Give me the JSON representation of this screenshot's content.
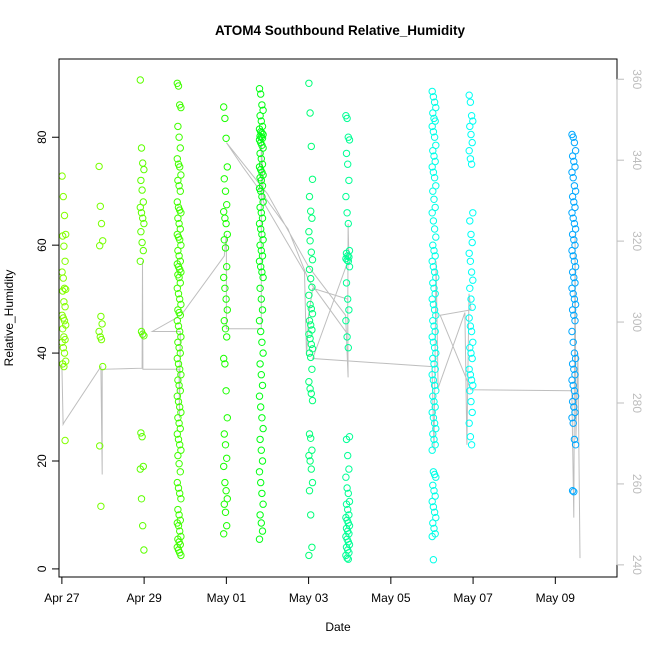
{
  "chart_data": {
    "type": "scatter",
    "title": "ATOM4 Southbound Relative_Humidity",
    "xlabel": "Date",
    "ylabel": "Relative_Humidity",
    "x_unit": "days since Apr 27 00:00",
    "xlim": [
      -0.07,
      13.5
    ],
    "ylim": [
      -1.5,
      94.5
    ],
    "x_ticks": [
      {
        "value": 0,
        "label": "Apr 27"
      },
      {
        "value": 2,
        "label": "Apr 29"
      },
      {
        "value": 4,
        "label": "May 01"
      },
      {
        "value": 6,
        "label": "May 03"
      },
      {
        "value": 8,
        "label": "May 05"
      },
      {
        "value": 10,
        "label": "May 07"
      },
      {
        "value": 12,
        "label": "May 09"
      }
    ],
    "y_ticks": [
      0,
      20,
      40,
      60,
      80
    ],
    "y2_ticks": [
      240,
      260,
      280,
      300,
      320,
      340,
      360
    ],
    "y2lim": [
      237,
      365
    ],
    "colors": {
      "axis": "#000000",
      "right_axis": "#bdbdbd",
      "path_line": "#bebebe",
      "frame": "#000000"
    },
    "clusters": [
      {
        "x": 0.05,
        "color": "#84ff00",
        "values": [
          72.8,
          69.0,
          65.5,
          62.0,
          61.7,
          59.8,
          57.0,
          55.0,
          53.9,
          52.0,
          51.8,
          51.5,
          49.5,
          48.6,
          47.0,
          46.5,
          46.0,
          45.2,
          44.5,
          43.0,
          42.5,
          42.0,
          41.0,
          40.0,
          38.5,
          38.0,
          37.5,
          23.8
        ]
      },
      {
        "x": 0.95,
        "color": "#77ff00",
        "values": [
          74.6,
          67.2,
          64.0,
          60.8,
          59.9,
          46.8,
          45.4,
          44.0,
          43.0,
          42.5,
          37.5,
          22.8,
          11.6
        ]
      },
      {
        "x": 1.95,
        "color": "#5dff00",
        "values": [
          90.6,
          78.0,
          75.2,
          74.0,
          72.0,
          70.2,
          68.0,
          67.0,
          66.0,
          65.0,
          64.0,
          62.5,
          60.5,
          59.0,
          57.0,
          44.0,
          43.5,
          43.2,
          25.2,
          24.5,
          19.0,
          18.5,
          13.0,
          8.0,
          3.5
        ]
      },
      {
        "x": 2.85,
        "color": "#40ff00",
        "values": [
          90.0,
          89.5,
          86.0,
          85.5,
          82.0,
          80.0,
          78.0,
          76.0,
          75.0,
          74.5,
          73.0,
          72.0,
          71.0,
          70.0,
          68.0,
          67.0,
          66.5,
          66.0,
          65.0,
          64.0,
          63.0,
          62.0,
          61.5,
          61.0,
          60.0,
          59.0,
          58.0,
          57.0,
          56.5,
          56.0,
          55.5,
          55.0,
          54.5,
          54.0,
          53.0,
          52.0,
          51.0,
          50.0,
          49.0,
          48.0,
          47.5,
          47.0,
          46.0,
          45.0,
          44.0,
          43.0,
          42.0,
          41.0,
          40.0,
          39.0,
          38.0,
          37.0,
          36.0,
          35.0,
          34.0,
          33.0,
          32.0,
          31.0,
          30.0,
          29.0,
          28.0,
          27.0,
          26.0,
          25.0,
          24.0,
          23.0,
          22.0,
          21.0,
          19.5,
          18.0,
          16.0,
          15.0,
          14.0,
          13.0,
          11.0,
          10.0,
          9.0,
          8.5,
          8.0,
          7.0,
          6.0,
          5.5,
          5.0,
          4.5,
          4.0,
          3.5,
          3.0,
          2.5
        ]
      },
      {
        "x": 3.98,
        "color": "#1bff00",
        "values": [
          85.6,
          83.5,
          79.8,
          74.5,
          72.3,
          70.0,
          67.5,
          66.2,
          65.0,
          64.0,
          62.0,
          61.0,
          59.5,
          56.0,
          54.0,
          52.0,
          50.0,
          48.0,
          46.0,
          44.5,
          43.0,
          39.0,
          38.0,
          33.0,
          28.0,
          25.0,
          23.0,
          20.5,
          19.0,
          16.0,
          14.5,
          13.0,
          12.0,
          10.5,
          8.0,
          6.5
        ]
      },
      {
        "x": 4.85,
        "color": "#00ff12",
        "values": [
          89.0,
          88.0,
          86.0,
          85.0,
          84.0,
          83.0,
          82.0,
          81.5,
          81.0,
          80.8,
          80.5,
          80.2,
          80.0,
          79.8,
          79.5,
          79.0,
          78.5,
          78.0,
          77.0,
          76.0,
          75.0,
          74.5,
          74.0,
          73.5,
          73.0,
          72.5,
          72.0,
          71.0,
          70.5,
          70.0,
          69.0,
          68.0,
          67.0,
          66.0,
          65.0,
          64.0,
          63.0,
          62.0,
          61.0,
          60.0,
          59.0,
          58.0,
          57.0,
          56.0,
          55.0,
          54.0,
          52.0,
          50.0,
          48.0,
          46.0,
          44.0,
          42.0,
          40.0,
          38.0,
          36.0,
          34.0,
          32.0,
          30.0,
          28.0,
          26.0,
          24.0,
          22.0,
          20.0,
          18.0,
          16.0,
          14.0,
          12.0,
          10.0,
          8.5,
          7.0,
          5.5
        ]
      },
      {
        "x": 6.05,
        "color": "#00ff78",
        "values": [
          90.0,
          84.5,
          78.3,
          72.2,
          69.0,
          66.3,
          65.0,
          62.5,
          60.8,
          58.7,
          57.3,
          55.5,
          53.8,
          52.2,
          50.7,
          49.0,
          48.2,
          47.3,
          46.0,
          45.2,
          44.3,
          43.5,
          42.7,
          41.6,
          40.8,
          40.0,
          39.2,
          37.0,
          34.7,
          33.4,
          32.5,
          31.2,
          25.0,
          24.2,
          22.0,
          21.0,
          20.0,
          18.5,
          16.0,
          14.5,
          10.0,
          4.0,
          2.5
        ]
      },
      {
        "x": 6.95,
        "color": "#00ff95",
        "values": [
          84.0,
          83.5,
          80.0,
          79.5,
          77.0,
          75.0,
          72.0,
          69.0,
          66.0,
          64.0,
          59.0,
          58.5,
          58.0,
          57.8,
          57.5,
          57.2,
          57.0,
          56.0,
          53.0,
          50.0,
          48.0,
          46.0,
          43.0,
          41.0,
          24.5,
          24.0,
          21.0,
          18.5,
          17.0,
          15.0,
          14.0,
          12.5,
          12.0,
          11.0,
          10.0,
          9.5,
          9.0,
          8.5,
          8.0,
          7.5,
          7.0,
          6.5,
          6.0,
          5.5,
          5.0,
          4.5,
          4.0,
          3.5,
          3.0,
          2.5,
          2.0,
          1.8
        ]
      },
      {
        "x": 9.05,
        "color": "#00ffe8",
        "values": [
          88.5,
          87.5,
          86.5,
          85.5,
          84.5,
          83.5,
          83.0,
          82.0,
          81.0,
          80.0,
          78.5,
          77.5,
          76.5,
          75.5,
          74.5,
          73.5,
          72.5,
          71.0,
          70.0,
          68.5,
          67.0,
          66.0,
          64.5,
          63.0,
          61.5,
          60.0,
          59.0,
          58.0,
          57.0,
          56.0,
          55.0,
          54.0,
          53.0,
          52.0,
          51.0,
          50.0,
          49.0,
          48.0,
          47.0,
          46.0,
          45.0,
          44.0,
          43.0,
          42.0,
          41.0,
          40.0,
          39.0,
          38.0,
          37.0,
          36.0,
          35.0,
          34.0,
          33.0,
          32.0,
          31.0,
          30.0,
          29.0,
          28.0,
          27.0,
          26.0,
          25.0,
          24.0,
          23.0,
          22.0,
          18.0,
          17.5,
          17.0,
          15.5,
          14.5,
          13.5,
          12.5,
          11.5,
          10.5,
          9.5,
          8.5,
          7.5,
          6.5,
          6.0,
          1.7
        ]
      },
      {
        "x": 9.95,
        "color": "#00fff5",
        "values": [
          87.8,
          86.5,
          84.0,
          83.0,
          82.0,
          80.5,
          79.0,
          77.5,
          76.0,
          75.0,
          66.0,
          64.5,
          62.0,
          60.5,
          58.5,
          57.0,
          55.0,
          53.5,
          52.0,
          50.0,
          48.5,
          46.5,
          45.0,
          44.0,
          42.0,
          41.0,
          40.0,
          39.0,
          37.0,
          36.0,
          35.0,
          34.0,
          33.0,
          31.0,
          29.0,
          27.0,
          24.5,
          23.0
        ]
      },
      {
        "x": 12.45,
        "color": "#00a8ff",
        "values": [
          80.5,
          80.0,
          79.0,
          77.5,
          76.5,
          75.5,
          74.5,
          73.5,
          72.5,
          71.0,
          70.0,
          69.0,
          68.0,
          67.0,
          66.0,
          65.0,
          64.0,
          63.0,
          62.0,
          61.0,
          60.0,
          59.0,
          58.0,
          57.0,
          56.0,
          55.0,
          54.0,
          53.0,
          52.0,
          51.0,
          50.0,
          49.0,
          48.0,
          47.0,
          46.0,
          44.0,
          42.0,
          40.0,
          39.0,
          38.0,
          37.0,
          36.0,
          35.0,
          34.0,
          33.0,
          32.0,
          31.0,
          30.0,
          29.0,
          28.0,
          27.0,
          24.0,
          23.0,
          14.5,
          14.3
        ]
      }
    ],
    "path_line": [
      [
        0.0,
        37.8
      ],
      [
        0.03,
        26.8
      ],
      [
        0.06,
        27.2
      ],
      [
        0.95,
        37.5
      ],
      [
        0.98,
        17.5
      ],
      [
        0.98,
        37.0
      ],
      [
        1.95,
        37.2
      ],
      [
        1.96,
        57.0
      ],
      [
        1.97,
        37.0
      ],
      [
        2.85,
        37.0
      ],
      [
        2.86,
        28.0
      ],
      [
        2.88,
        44.0
      ],
      [
        2.2,
        44.0
      ],
      [
        2.9,
        47.0
      ],
      [
        3.95,
        58.0
      ],
      [
        4.0,
        62.0
      ],
      [
        4.0,
        44.5
      ],
      [
        4.85,
        44.5
      ],
      [
        4.85,
        80.0
      ],
      [
        4.9,
        68.0
      ],
      [
        5.9,
        55.0
      ],
      [
        5.95,
        39.5
      ],
      [
        6.0,
        47.0
      ],
      [
        6.1,
        52.0
      ],
      [
        6.95,
        50.0
      ],
      [
        6.96,
        35.5
      ],
      [
        6.9,
        47.0
      ],
      [
        6.0,
        56.0
      ],
      [
        5.0,
        69.5
      ],
      [
        4.0,
        79.0
      ],
      [
        4.4,
        74.5
      ],
      [
        5.5,
        63.0
      ],
      [
        6.0,
        53.5
      ],
      [
        6.95,
        43.5
      ],
      [
        6.96,
        64.0
      ],
      [
        6.98,
        57.5
      ],
      [
        6.1,
        39.0
      ],
      [
        9.0,
        37.5
      ],
      [
        9.05,
        22.0
      ],
      [
        9.1,
        57.0
      ],
      [
        9.15,
        33.5
      ],
      [
        9.8,
        47.5
      ],
      [
        9.85,
        23.0
      ],
      [
        9.9,
        51.0
      ],
      [
        9.95,
        48.0
      ],
      [
        9.2,
        47.0
      ],
      [
        9.95,
        33.2
      ],
      [
        12.4,
        33.0
      ],
      [
        12.45,
        9.5
      ],
      [
        12.48,
        62.0
      ],
      [
        12.5,
        24.0
      ],
      [
        12.55,
        40.0
      ],
      [
        12.6,
        2.0
      ]
    ]
  }
}
